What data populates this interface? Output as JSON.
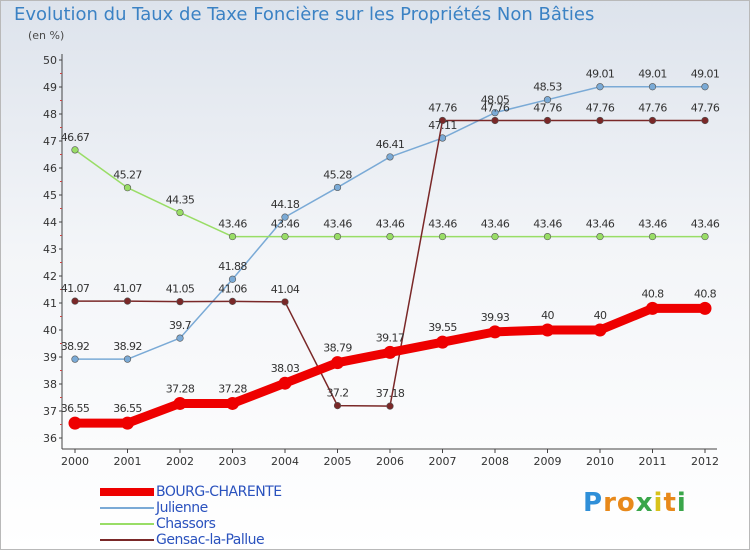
{
  "header": {
    "title": "Evolution du Taux de Taxe Foncière sur les Propriétés Non Bâties",
    "unit": "(en %)"
  },
  "chart_data": {
    "type": "line",
    "title": "Evolution du Taux de Taxe Foncière sur les Propriétés Non Bâties",
    "ylabel": "(en %)",
    "xlabel": "",
    "x": [
      "2000",
      "2001",
      "2002",
      "2003",
      "2004",
      "2005",
      "2006",
      "2007",
      "2008",
      "2009",
      "2010",
      "2011",
      "2012"
    ],
    "ylim": [
      36,
      50
    ],
    "yticks": [
      36,
      37,
      38,
      39,
      40,
      41,
      42,
      43,
      44,
      45,
      46,
      47,
      48,
      49,
      50
    ],
    "series": [
      {
        "name": "BOURG-CHARENTE",
        "color": "#ee0000",
        "values": [
          36.55,
          36.55,
          37.28,
          37.28,
          38.03,
          38.79,
          39.17,
          39.55,
          39.93,
          40,
          40,
          40.8,
          40.8
        ]
      },
      {
        "name": "Julienne",
        "color": "#7aaad6",
        "values": [
          38.92,
          38.92,
          39.7,
          41.88,
          44.18,
          45.28,
          46.41,
          47.11,
          48.05,
          48.53,
          49.01,
          49.01,
          49.01
        ]
      },
      {
        "name": "Chassors",
        "color": "#99dd66",
        "values": [
          46.67,
          45.27,
          44.35,
          43.46,
          43.46,
          43.46,
          43.46,
          43.46,
          43.46,
          43.46,
          43.46,
          43.46,
          43.46
        ]
      },
      {
        "name": "Gensac-la-Pallue",
        "color": "#7a2828",
        "values": [
          41.07,
          41.07,
          41.05,
          41.06,
          41.04,
          37.2,
          37.18,
          47.76,
          47.76,
          47.76,
          47.76,
          47.76,
          47.76
        ]
      }
    ],
    "labels": [
      [
        "36.55",
        "36.55",
        "37.28",
        "37.28",
        "38.03",
        "38.79",
        "39.17",
        "39.55",
        "39.93",
        "40",
        "40",
        "40.8",
        "40.8"
      ],
      [
        "38.92",
        "38.92",
        "39.7",
        "41.88",
        "44.18",
        "45.28",
        "46.41",
        "47.11",
        "48.05",
        "48.53",
        "49.01",
        "49.01",
        "49.01"
      ],
      [
        "46.67",
        "45.27",
        "44.35",
        "43.46",
        "43.46",
        "43.46",
        "43.46",
        "43.46",
        "43.46",
        "43.46",
        "43.46",
        "43.46",
        "43.46"
      ],
      [
        "41.07",
        "41.07",
        "41.05",
        "41.06",
        "41.04",
        "37.2",
        "37.18",
        "47.76",
        "47.76",
        "47.76",
        "47.76",
        "47.76",
        "47.76"
      ]
    ],
    "legend_position": "bottom-left",
    "grid": false
  },
  "legend": {
    "items": [
      {
        "label": "BOURG-CHARENTE",
        "color": "#ee0000"
      },
      {
        "label": "Julienne",
        "color": "#7aaad6"
      },
      {
        "label": "Chassors",
        "color": "#99dd66"
      },
      {
        "label": "Gensac-la-Pallue",
        "color": "#7a2828"
      }
    ]
  },
  "logo": {
    "letters": [
      "P",
      "r",
      "o",
      "x",
      "i",
      "t",
      "i"
    ],
    "colors": [
      "#2f8fd8",
      "#e8891a",
      "#e8891a",
      "#3aa64a",
      "#d8c21a",
      "#e8891a",
      "#3aa64a"
    ]
  }
}
